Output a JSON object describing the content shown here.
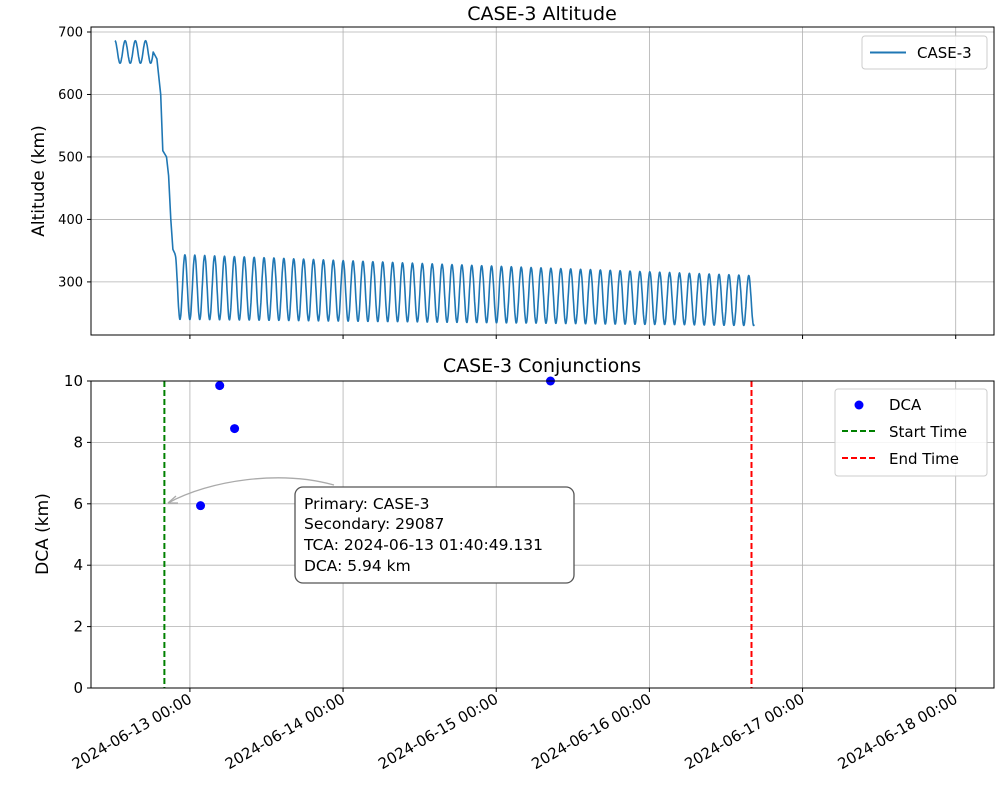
{
  "chart_data": [
    {
      "type": "line",
      "title": "CASE-3 Altitude",
      "xlabel": "",
      "ylabel": "Altitude (km)",
      "ylim": [
        215,
        708
      ],
      "grid": true,
      "legend": {
        "position": "top-right",
        "entries": [
          "CASE-3"
        ]
      },
      "yticks": [
        300,
        400,
        500,
        600,
        700
      ],
      "series": [
        {
          "name": "CASE-3",
          "color": "#1f77b4",
          "start": "2024-06-12 12:15",
          "end": "2024-06-16 16:25",
          "segments": [
            {
              "from": "2024-06-12 12:15",
              "to": "2024-06-12 18:15",
              "center_km": 668,
              "amplitude_km": 18,
              "period_hours": 1.6
            },
            {
              "from": "2024-06-12 18:15",
              "to": "2024-06-12 21:40",
              "profile": [
                [
                  657,
                  "2024-06-12 18:50"
                ],
                [
                  600,
                  "2024-06-12 19:25"
                ],
                [
                  510,
                  "2024-06-12 19:45"
                ],
                [
                  500,
                  "2024-06-12 20:20"
                ],
                [
                  470,
                  "2024-06-12 20:40"
                ],
                [
                  400,
                  "2024-06-12 21:00"
                ],
                [
                  352,
                  "2024-06-12 21:20"
                ],
                [
                  345,
                  "2024-06-12 21:40"
                ]
              ]
            },
            {
              "from": "2024-06-12 21:40",
              "to": "2024-06-16 16:25",
              "center_start_km": 292,
              "center_end_km": 270,
              "amplitude_start_km": 52,
              "amplitude_end_km": 40,
              "period_hours": 1.55
            }
          ]
        }
      ]
    },
    {
      "type": "scatter",
      "title": "CASE-3 Conjunctions",
      "xlabel": "",
      "ylabel": "DCA (km)",
      "ylim": [
        0,
        10
      ],
      "yticks": [
        0,
        2,
        4,
        6,
        8,
        10
      ],
      "grid": true,
      "legend": {
        "position": "top-right",
        "entries": [
          "DCA",
          "Start Time",
          "End Time"
        ]
      },
      "points": [
        {
          "x": "2024-06-13 01:40",
          "y": 5.94
        },
        {
          "x": "2024-06-13 04:40",
          "y": 9.85
        },
        {
          "x": "2024-06-13 07:00",
          "y": 8.45
        },
        {
          "x": "2024-06-15 08:30",
          "y": 10.0
        }
      ],
      "vlines": [
        {
          "name": "Start Time",
          "x": "2024-06-12 20:00",
          "color": "#008000",
          "style": "dashed"
        },
        {
          "name": "End Time",
          "x": "2024-06-16 16:00",
          "color": "#ff0000",
          "style": "dashed"
        }
      ],
      "point_color": "#0000ff",
      "annotation": {
        "lines": [
          "Primary: CASE-3",
          "Secondary: 29087",
          "TCA: 2024-06-13 01:40:49.131",
          "DCA: 5.94 km"
        ],
        "points_to": 0
      }
    }
  ],
  "x_axis": {
    "range": [
      "2024-06-12 08:30",
      "2024-06-18 06:00"
    ],
    "ticks": [
      "2024-06-13 00:00",
      "2024-06-14 00:00",
      "2024-06-15 00:00",
      "2024-06-16 00:00",
      "2024-06-17 00:00",
      "2024-06-18 00:00"
    ]
  }
}
